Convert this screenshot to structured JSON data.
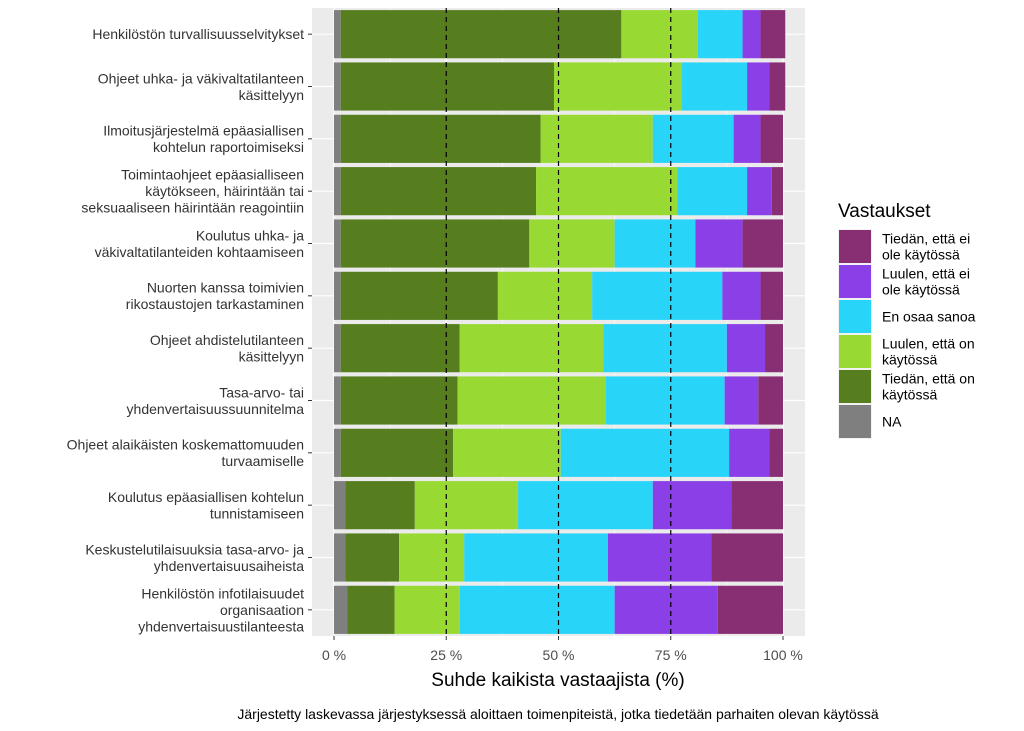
{
  "chart_data": {
    "type": "bar",
    "orientation": "horizontal",
    "stacked": true,
    "categories": [
      "Henkilöstön turvallisuusselvitykset",
      "Ohjeet uhka- ja väkivaltatilanteen\nkäsittelyyn",
      "Ilmoitusjärjestelmä epäasiallisen\nkohtelun raportoimiseksi",
      "Toimintaohjeet epäasialliseen\nkäytökseen, häirintään tai\nseksuaaliseen häirintään reagointiin",
      "Koulutus uhka- ja\nväkivaltatilanteiden kohtaamiseen",
      "Nuorten kanssa toimivien\nrikostaustojen tarkastaminen",
      "Ohjeet ahdistelutilanteen\nkäsittelyyn",
      "Tasa-arvo- tai\nyhdenvertaisuussuunnitelma",
      "Ohjeet alaikäisten koskemattomuuden\nturvaamiselle",
      "Koulutus epäasiallisen kohtelun\ntunnistamiseen",
      "Keskustelutilaisuuksia tasa-arvo- ja\nyhdenvertaisuusaiheista",
      "Henkilöstön infotilaisuudet\norganisaation\nyhdenvertaisuustilanteesta"
    ],
    "series": [
      {
        "name": "NA",
        "color": "#7f7f7f",
        "values": [
          1.5,
          1.5,
          1.5,
          1.5,
          1.5,
          1.5,
          1.5,
          1.5,
          1.5,
          2.5,
          2.5,
          3.0
        ]
      },
      {
        "name": "Tiedän, että on\nkäytössä",
        "color": "#567d1e",
        "values": [
          62.5,
          47.5,
          44.5,
          43.5,
          42.0,
          35.0,
          26.5,
          26.0,
          25.0,
          15.5,
          12.0,
          10.5
        ]
      },
      {
        "name": "Luulen, että on\nkäytössä",
        "color": "#99d933",
        "values": [
          17.0,
          28.5,
          25.0,
          31.5,
          19.0,
          21.0,
          32.0,
          33.0,
          24.0,
          23.0,
          14.5,
          14.5
        ]
      },
      {
        "name": "En osaa sanoa",
        "color": "#29d4f9",
        "values": [
          10.0,
          14.5,
          18.0,
          15.5,
          18.0,
          29.0,
          27.5,
          26.5,
          37.5,
          30.0,
          32.0,
          34.5
        ]
      },
      {
        "name": "Luulen, että ei\nole käytössä",
        "color": "#8b3fe6",
        "values": [
          4.0,
          5.0,
          6.0,
          5.5,
          10.5,
          8.5,
          8.5,
          7.5,
          9.0,
          17.5,
          23.0,
          23.0
        ]
      },
      {
        "name": "Tiedän, että ei\nole käytössä",
        "color": "#882e72",
        "values": [
          5.5,
          3.5,
          5.0,
          2.5,
          9.0,
          5.0,
          4.0,
          5.5,
          3.0,
          11.5,
          16.0,
          14.5
        ]
      }
    ],
    "xlabel": "Suhde kaikista vastaajista (%)",
    "ylabel": "",
    "xlim": [
      0,
      100
    ],
    "xticks": [
      "0 %",
      "25 %",
      "50 %",
      "75 %",
      "100 %"
    ],
    "xtick_values": [
      0,
      25,
      50,
      75,
      100
    ],
    "reference_lines": [
      25,
      50,
      75
    ],
    "legend_title": "Vastaukset",
    "legend_position": "right",
    "legend_order": [
      5,
      4,
      3,
      2,
      1,
      0
    ],
    "caption": "Järjestetty laskevassa järjestyksessä aloittaen toimenpiteistä, jotka tiedetään parhaiten olevan käytössä",
    "grid": true,
    "panel_background": "#ebebeb"
  }
}
